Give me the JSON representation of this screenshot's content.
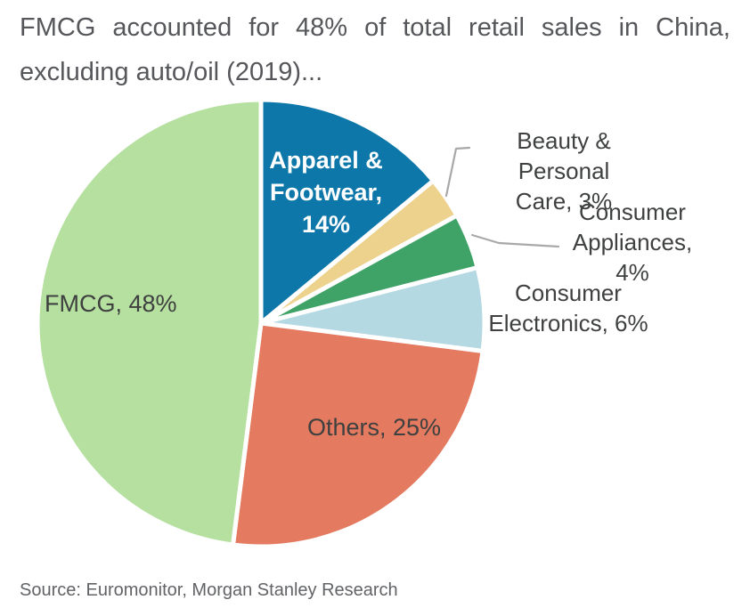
{
  "header": {
    "title_line1": "FMCG accounted for 48% of total retail sales in China,",
    "title_line2": "excluding auto/oil (2019)..."
  },
  "chart_data": {
    "type": "pie",
    "title": "FMCG accounted for 48% of total retail sales in China, excluding auto/oil (2019)...",
    "unit": "percent",
    "direction": "clockwise",
    "start_angle_deg": 0,
    "legend": "none",
    "gap_color": "#ffffff",
    "leader_line_color": "#a8a8a8",
    "slices": [
      {
        "name": "Apparel & Footwear",
        "value": 14,
        "color": "#0d77a9",
        "text_color": "#ffffff",
        "label": "Apparel &\nFootwear,\n14%"
      },
      {
        "name": "Beauty & Personal Care",
        "value": 3,
        "color": "#ecd28c",
        "text_color": "#3f4040",
        "label": "Beauty & Personal\nCare, 3%"
      },
      {
        "name": "Consumer Appliances",
        "value": 4,
        "color": "#3fa368",
        "text_color": "#3f4040",
        "label": "Consumer\nAppliances, 4%"
      },
      {
        "name": "Consumer Electronics",
        "value": 6,
        "color": "#b5d9e3",
        "text_color": "#3f4040",
        "label": "Consumer\nElectronics, 6%"
      },
      {
        "name": "Others",
        "value": 25,
        "color": "#e47a5f",
        "text_color": "#3f4040",
        "label": "Others, 25%"
      },
      {
        "name": "FMCG",
        "value": 48,
        "color": "#b6e0a0",
        "text_color": "#3f4040",
        "label": "FMCG, 48%"
      }
    ]
  },
  "footer": {
    "source": "Source: Euromonitor, Morgan Stanley Research"
  }
}
